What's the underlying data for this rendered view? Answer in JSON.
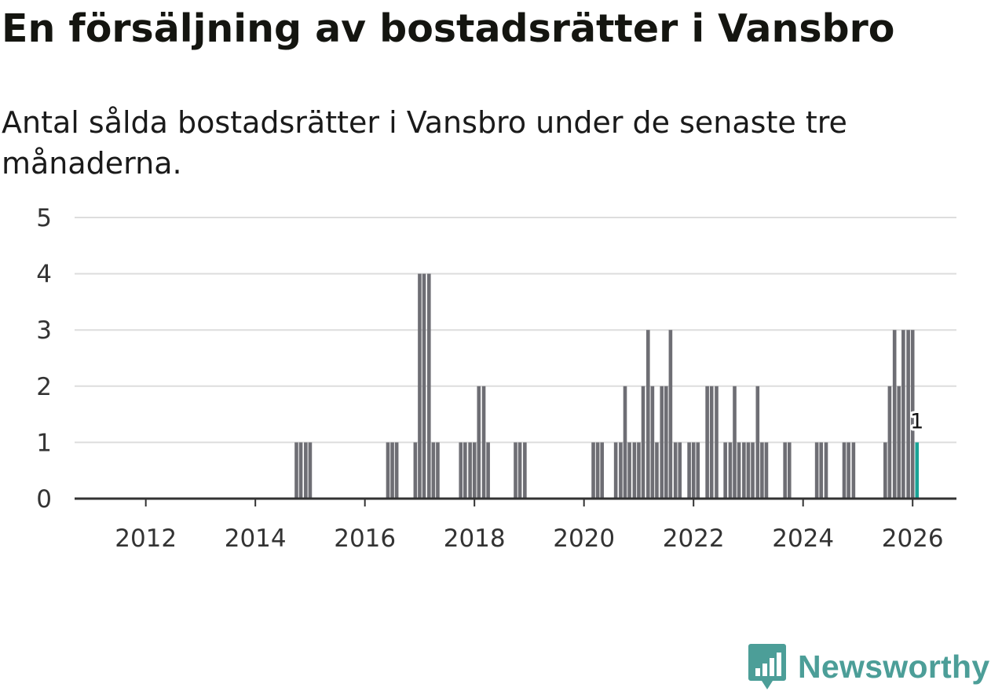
{
  "title": "En försäljning av bostadsrätter i Vansbro",
  "subtitle": "Antal sålda bostadsrätter i Vansbro under de senaste tre månaderna.",
  "brand": {
    "name": "Newsworthy",
    "icon": "newsworthy-logo-icon",
    "color": "#4c9e98"
  },
  "colors": {
    "bar": "#6e6e74",
    "highlight": "#19a396",
    "grid": "#dddddd",
    "axis": "#333333"
  },
  "chart_data": {
    "type": "bar",
    "title": "En försäljning av bostadsrätter i Vansbro",
    "xlabel": "",
    "ylabel": "",
    "ylim": [
      0,
      5
    ],
    "yticks": [
      "0",
      "1",
      "2",
      "3",
      "4",
      "5"
    ],
    "xlim": [
      2010.7,
      2026.8
    ],
    "xticks": [
      "2012",
      "2014",
      "2016",
      "2018",
      "2020",
      "2022",
      "2024",
      "2026"
    ],
    "bar_width_months": 1,
    "series": [
      {
        "name": "Antal sålda bostadsrätter",
        "points": [
          {
            "x": 2014.75,
            "y": 1
          },
          {
            "x": 2014.83,
            "y": 1
          },
          {
            "x": 2014.92,
            "y": 1
          },
          {
            "x": 2015.0,
            "y": 1
          },
          {
            "x": 2016.42,
            "y": 1
          },
          {
            "x": 2016.5,
            "y": 1
          },
          {
            "x": 2016.58,
            "y": 1
          },
          {
            "x": 2016.92,
            "y": 1
          },
          {
            "x": 2017.0,
            "y": 4
          },
          {
            "x": 2017.08,
            "y": 4
          },
          {
            "x": 2017.17,
            "y": 4
          },
          {
            "x": 2017.25,
            "y": 1
          },
          {
            "x": 2017.33,
            "y": 1
          },
          {
            "x": 2017.75,
            "y": 1
          },
          {
            "x": 2017.83,
            "y": 1
          },
          {
            "x": 2017.92,
            "y": 1
          },
          {
            "x": 2018.0,
            "y": 1
          },
          {
            "x": 2018.08,
            "y": 2
          },
          {
            "x": 2018.17,
            "y": 2
          },
          {
            "x": 2018.25,
            "y": 1
          },
          {
            "x": 2018.75,
            "y": 1
          },
          {
            "x": 2018.83,
            "y": 1
          },
          {
            "x": 2018.92,
            "y": 1
          },
          {
            "x": 2020.17,
            "y": 1
          },
          {
            "x": 2020.25,
            "y": 1
          },
          {
            "x": 2020.33,
            "y": 1
          },
          {
            "x": 2020.58,
            "y": 1
          },
          {
            "x": 2020.67,
            "y": 1
          },
          {
            "x": 2020.75,
            "y": 2
          },
          {
            "x": 2020.83,
            "y": 1
          },
          {
            "x": 2020.92,
            "y": 1
          },
          {
            "x": 2021.0,
            "y": 1
          },
          {
            "x": 2021.08,
            "y": 2
          },
          {
            "x": 2021.17,
            "y": 3
          },
          {
            "x": 2021.25,
            "y": 2
          },
          {
            "x": 2021.33,
            "y": 1
          },
          {
            "x": 2021.42,
            "y": 2
          },
          {
            "x": 2021.5,
            "y": 2
          },
          {
            "x": 2021.58,
            "y": 3
          },
          {
            "x": 2021.67,
            "y": 1
          },
          {
            "x": 2021.75,
            "y": 1
          },
          {
            "x": 2021.92,
            "y": 1
          },
          {
            "x": 2022.0,
            "y": 1
          },
          {
            "x": 2022.08,
            "y": 1
          },
          {
            "x": 2022.25,
            "y": 2
          },
          {
            "x": 2022.33,
            "y": 2
          },
          {
            "x": 2022.42,
            "y": 2
          },
          {
            "x": 2022.58,
            "y": 1
          },
          {
            "x": 2022.67,
            "y": 1
          },
          {
            "x": 2022.75,
            "y": 2
          },
          {
            "x": 2022.83,
            "y": 1
          },
          {
            "x": 2022.92,
            "y": 1
          },
          {
            "x": 2023.0,
            "y": 1
          },
          {
            "x": 2023.08,
            "y": 1
          },
          {
            "x": 2023.17,
            "y": 2
          },
          {
            "x": 2023.25,
            "y": 1
          },
          {
            "x": 2023.33,
            "y": 1
          },
          {
            "x": 2023.67,
            "y": 1
          },
          {
            "x": 2023.75,
            "y": 1
          },
          {
            "x": 2024.25,
            "y": 1
          },
          {
            "x": 2024.33,
            "y": 1
          },
          {
            "x": 2024.42,
            "y": 1
          },
          {
            "x": 2024.75,
            "y": 1
          },
          {
            "x": 2024.83,
            "y": 1
          },
          {
            "x": 2024.92,
            "y": 1
          },
          {
            "x": 2025.5,
            "y": 1
          },
          {
            "x": 2025.58,
            "y": 2
          },
          {
            "x": 2025.67,
            "y": 3
          },
          {
            "x": 2025.75,
            "y": 2
          },
          {
            "x": 2025.83,
            "y": 3
          },
          {
            "x": 2025.92,
            "y": 3
          },
          {
            "x": 2026.0,
            "y": 3
          }
        ]
      }
    ],
    "highlight": {
      "x": 2026.08,
      "y": 1,
      "label": "1"
    }
  }
}
